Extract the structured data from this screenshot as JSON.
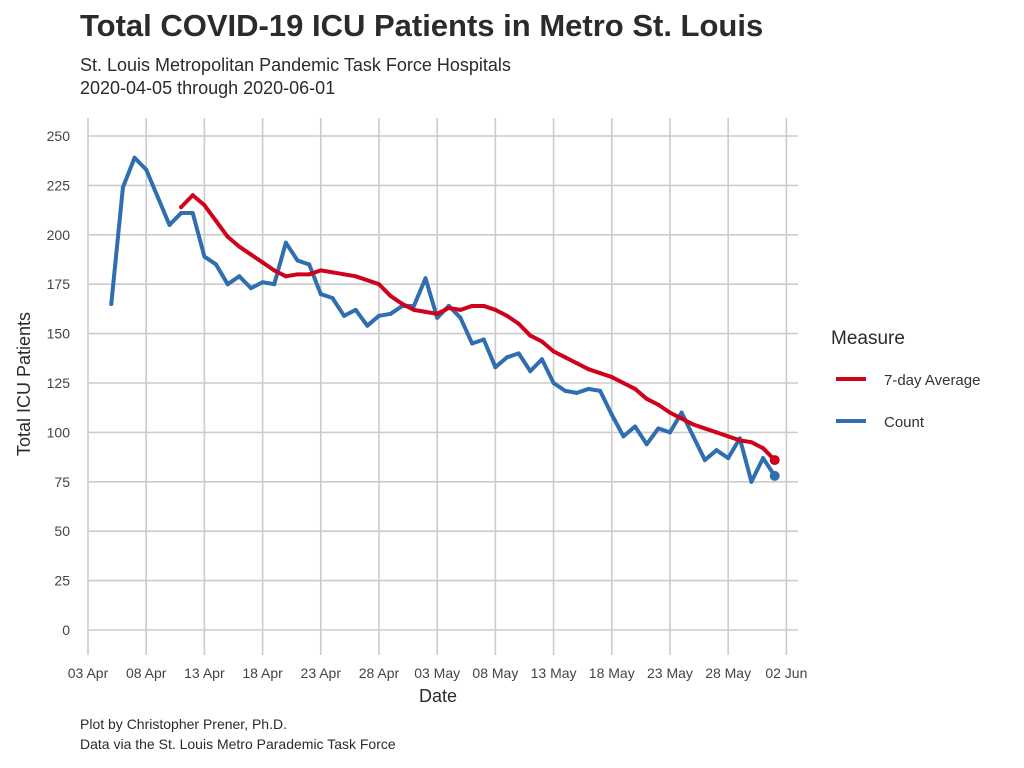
{
  "title": "Total COVID-19 ICU Patients in Metro St. Louis",
  "subtitle_1": "St. Louis Metropolitan Pandemic Task Force Hospitals",
  "subtitle_2": "2020-04-05 through 2020-06-01",
  "caption_1": "Plot by Christopher Prener, Ph.D.",
  "caption_2": "Data via the St. Louis Metro Parademic Task Force",
  "colors": {
    "count": "#2f6eb0",
    "average": "#d0021b",
    "grid": "#cccccc"
  },
  "chart_data": {
    "type": "line",
    "title": "Total COVID-19 ICU Patients in Metro St. Louis",
    "xlabel": "Date",
    "ylabel": "Total ICU Patients",
    "ylim": [
      0,
      250
    ],
    "y_ticks": [
      0,
      25,
      50,
      75,
      100,
      125,
      150,
      175,
      200,
      225,
      250
    ],
    "x_range": [
      "2020-04-03",
      "2020-06-03"
    ],
    "x_ticks": [
      {
        "date": "2020-04-03",
        "label": "03 Apr"
      },
      {
        "date": "2020-04-08",
        "label": "08 Apr"
      },
      {
        "date": "2020-04-13",
        "label": "13 Apr"
      },
      {
        "date": "2020-04-18",
        "label": "18 Apr"
      },
      {
        "date": "2020-04-23",
        "label": "23 Apr"
      },
      {
        "date": "2020-04-28",
        "label": "28 Apr"
      },
      {
        "date": "2020-05-03",
        "label": "03 May"
      },
      {
        "date": "2020-05-08",
        "label": "08 May"
      },
      {
        "date": "2020-05-13",
        "label": "13 May"
      },
      {
        "date": "2020-05-18",
        "label": "18 May"
      },
      {
        "date": "2020-05-23",
        "label": "23 May"
      },
      {
        "date": "2020-05-28",
        "label": "28 May"
      },
      {
        "date": "2020-06-02",
        "label": "02 Jun"
      }
    ],
    "grid": true,
    "legend": {
      "title": "Measure",
      "position": "right"
    },
    "series": [
      {
        "name": "7-day Average",
        "color": "#d0021b",
        "end_point": true,
        "x": [
          "2020-04-11",
          "2020-04-12",
          "2020-04-13",
          "2020-04-14",
          "2020-04-15",
          "2020-04-16",
          "2020-04-17",
          "2020-04-18",
          "2020-04-19",
          "2020-04-20",
          "2020-04-21",
          "2020-04-22",
          "2020-04-23",
          "2020-04-24",
          "2020-04-25",
          "2020-04-26",
          "2020-04-27",
          "2020-04-28",
          "2020-04-29",
          "2020-04-30",
          "2020-05-01",
          "2020-05-02",
          "2020-05-03",
          "2020-05-04",
          "2020-05-05",
          "2020-05-06",
          "2020-05-07",
          "2020-05-08",
          "2020-05-09",
          "2020-05-10",
          "2020-05-11",
          "2020-05-12",
          "2020-05-13",
          "2020-05-14",
          "2020-05-15",
          "2020-05-16",
          "2020-05-17",
          "2020-05-18",
          "2020-05-19",
          "2020-05-20",
          "2020-05-21",
          "2020-05-22",
          "2020-05-23",
          "2020-05-24",
          "2020-05-25",
          "2020-05-26",
          "2020-05-27",
          "2020-05-28",
          "2020-05-29",
          "2020-05-30",
          "2020-05-31",
          "2020-06-01"
        ],
        "values": [
          214,
          220,
          215,
          207,
          199,
          194,
          190,
          186,
          182,
          179,
          180,
          180,
          182,
          181,
          180,
          179,
          177,
          175,
          169,
          165,
          162,
          161,
          160,
          163,
          162,
          164,
          164,
          162,
          159,
          155,
          149,
          146,
          141,
          138,
          135,
          132,
          130,
          128,
          125,
          122,
          117,
          114,
          110,
          107,
          104,
          102,
          100,
          98,
          96,
          95,
          92,
          86
        ]
      },
      {
        "name": "Count",
        "color": "#2f6eb0",
        "end_point": true,
        "x": [
          "2020-04-05",
          "2020-04-06",
          "2020-04-07",
          "2020-04-08",
          "2020-04-09",
          "2020-04-10",
          "2020-04-11",
          "2020-04-12",
          "2020-04-13",
          "2020-04-14",
          "2020-04-15",
          "2020-04-16",
          "2020-04-17",
          "2020-04-18",
          "2020-04-19",
          "2020-04-20",
          "2020-04-21",
          "2020-04-22",
          "2020-04-23",
          "2020-04-24",
          "2020-04-25",
          "2020-04-26",
          "2020-04-27",
          "2020-04-28",
          "2020-04-29",
          "2020-04-30",
          "2020-05-01",
          "2020-05-02",
          "2020-05-03",
          "2020-05-04",
          "2020-05-05",
          "2020-05-06",
          "2020-05-07",
          "2020-05-08",
          "2020-05-09",
          "2020-05-10",
          "2020-05-11",
          "2020-05-12",
          "2020-05-13",
          "2020-05-14",
          "2020-05-15",
          "2020-05-16",
          "2020-05-17",
          "2020-05-18",
          "2020-05-19",
          "2020-05-20",
          "2020-05-21",
          "2020-05-22",
          "2020-05-23",
          "2020-05-24",
          "2020-05-25",
          "2020-05-26",
          "2020-05-27",
          "2020-05-28",
          "2020-05-29",
          "2020-05-30",
          "2020-05-31",
          "2020-06-01"
        ],
        "values": [
          165,
          224,
          239,
          233,
          219,
          205,
          211,
          211,
          189,
          185,
          175,
          179,
          173,
          176,
          175,
          196,
          187,
          185,
          170,
          168,
          159,
          162,
          154,
          159,
          160,
          164,
          164,
          178,
          158,
          164,
          158,
          145,
          147,
          133,
          138,
          140,
          131,
          137,
          125,
          121,
          120,
          122,
          121,
          109,
          98,
          103,
          94,
          102,
          100,
          110,
          98,
          86,
          91,
          87,
          97,
          75,
          87,
          78
        ]
      }
    ]
  }
}
